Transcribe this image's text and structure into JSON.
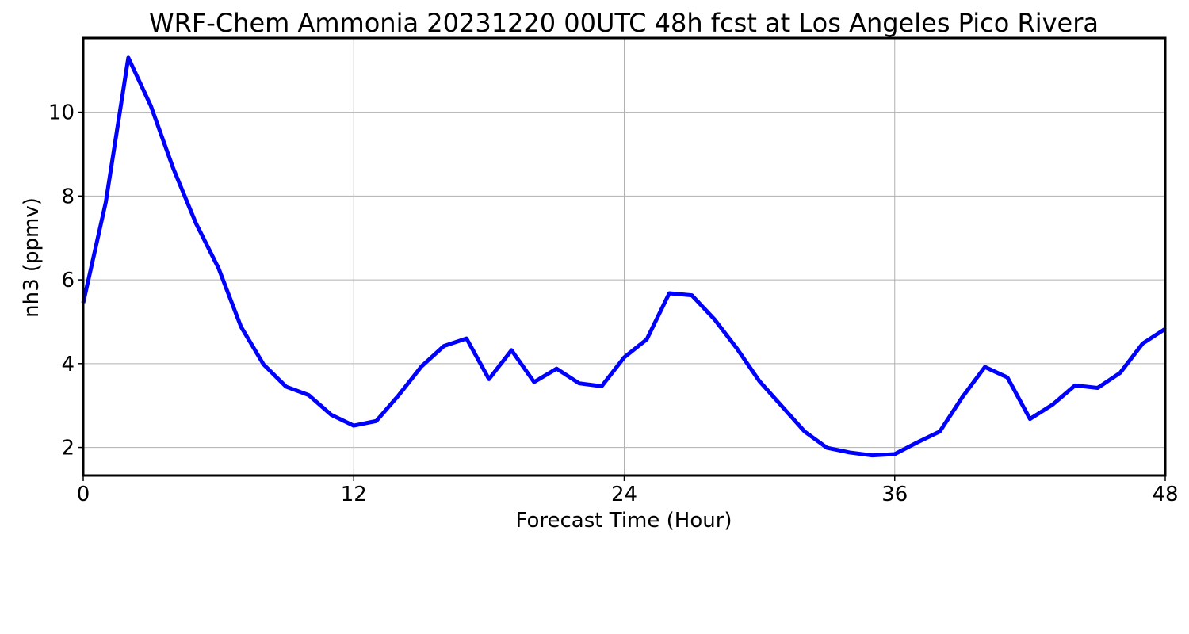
{
  "chart_data": {
    "type": "line",
    "title": "WRF-Chem Ammonia  20231220 00UTC 48h fcst at Los Angeles Pico Rivera",
    "xlabel": "Forecast Time (Hour)",
    "ylabel": "nh3  (ppmv)",
    "xlim": [
      0,
      48
    ],
    "ylim": [
      1.33,
      11.77
    ],
    "x_ticks": [
      0,
      12,
      24,
      36,
      48
    ],
    "y_ticks": [
      2,
      4,
      6,
      8,
      10
    ],
    "grid": true,
    "colors": {
      "line": "#0000ff",
      "grid": "#b0b0b0",
      "axes": "#000000"
    },
    "series": [
      {
        "x": [
          0,
          1,
          2,
          3,
          4,
          5,
          6,
          7,
          8,
          9,
          10,
          11,
          12,
          13,
          14,
          15,
          16,
          17,
          18,
          19,
          20,
          21,
          22,
          23,
          24,
          25,
          26,
          27,
          28,
          29,
          30,
          31,
          32,
          33,
          34,
          35,
          36,
          37,
          38,
          39,
          40,
          41,
          42,
          43,
          44,
          45,
          46,
          47,
          48
        ],
        "values": [
          5.45,
          7.85,
          11.3,
          10.15,
          8.65,
          7.35,
          6.28,
          4.88,
          3.98,
          3.45,
          3.25,
          2.78,
          2.52,
          2.63,
          3.25,
          3.93,
          4.42,
          4.6,
          3.63,
          4.32,
          3.56,
          3.88,
          3.53,
          3.46,
          4.15,
          4.58,
          5.68,
          5.63,
          5.06,
          4.36,
          3.58,
          2.98,
          2.38,
          1.99,
          1.88,
          1.81,
          1.84,
          2.12,
          2.38,
          3.2,
          3.92,
          3.67,
          2.68,
          3.02,
          3.48,
          3.42,
          3.78,
          4.48,
          4.83
        ]
      }
    ]
  }
}
